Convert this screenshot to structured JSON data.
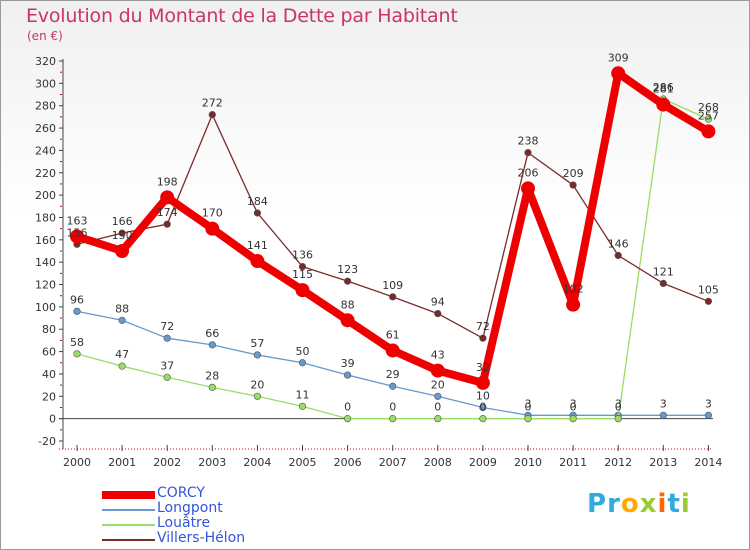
{
  "title": "Evolution du Montant de la Dette par Habitant",
  "unit": "(en €)",
  "logo": {
    "text": "Proxiti",
    "colors": [
      "#33aadd",
      "#33aadd",
      "#ffaa00",
      "#99cc33",
      "#ff6600",
      "#33aadd",
      "#99cc33"
    ]
  },
  "chart_data": {
    "type": "line",
    "categories": [
      "2000",
      "2001",
      "2002",
      "2003",
      "2004",
      "2005",
      "2006",
      "2007",
      "2008",
      "2009",
      "2010",
      "2011",
      "2012",
      "2013",
      "2014"
    ],
    "ylim": [
      -20,
      320
    ],
    "yticks": [
      -20,
      0,
      20,
      40,
      60,
      80,
      100,
      120,
      140,
      160,
      180,
      200,
      220,
      240,
      260,
      280,
      300,
      320
    ],
    "grid": false,
    "legend_position": "bottom-left",
    "series": [
      {
        "name": "CORCY",
        "color": "#ee0000",
        "values": [
          163,
          150,
          198,
          170,
          141,
          115,
          88,
          61,
          43,
          32,
          206,
          102,
          309,
          281,
          257
        ],
        "labels": [
          "163",
          "150",
          "198",
          "170",
          "141",
          "115",
          "88",
          "61",
          "43",
          "32",
          "206",
          "102",
          "309",
          "281",
          "257"
        ]
      },
      {
        "name": "Longpont",
        "color": "#6699cc",
        "values": [
          96,
          88,
          72,
          66,
          57,
          50,
          39,
          29,
          20,
          10,
          3,
          3,
          3,
          3,
          3
        ],
        "labels": [
          "96",
          "88",
          "72",
          "66",
          "57",
          "50",
          "39",
          "29",
          "20",
          "10",
          "3",
          "3",
          "3",
          "3",
          "3"
        ]
      },
      {
        "name": "Louâtre",
        "color": "#99dd66",
        "values": [
          58,
          47,
          37,
          28,
          20,
          11,
          0,
          0,
          0,
          0,
          0,
          0,
          0,
          286,
          268
        ],
        "labels": [
          "58",
          "47",
          "37",
          "28",
          "20",
          "11",
          "0",
          "0",
          "0",
          "0",
          "0",
          "0",
          "0",
          "286",
          "268"
        ]
      },
      {
        "name": "Villers-Hélon",
        "color": "#7a2a2a",
        "values": [
          156,
          166,
          174,
          272,
          184,
          136,
          123,
          109,
          94,
          72,
          238,
          209,
          146,
          121,
          105
        ],
        "labels": [
          "156",
          "166",
          "174",
          "272",
          "184",
          "136",
          "123",
          "109",
          "94",
          "72",
          "238",
          "209",
          "146",
          "121",
          "105"
        ]
      }
    ]
  }
}
